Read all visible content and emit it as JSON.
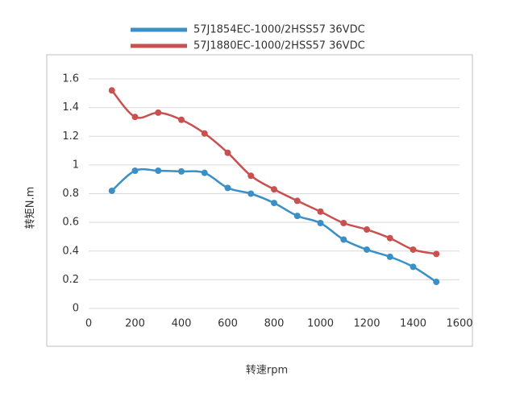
{
  "chart_data": {
    "type": "line",
    "x": [
      100,
      200,
      300,
      400,
      500,
      600,
      700,
      800,
      900,
      1000,
      1100,
      1200,
      1300,
      1400,
      1500
    ],
    "series": [
      {
        "name": "57J1854EC-1000/2HSS57  36VDC",
        "color": "#3a8fc7",
        "values": [
          0.82,
          0.96,
          0.96,
          0.955,
          0.945,
          0.84,
          0.8,
          0.735,
          0.645,
          0.595,
          0.48,
          0.41,
          0.36,
          0.29,
          0.185
        ]
      },
      {
        "name": "57J1880EC-1000/2HSS57  36VDC",
        "color": "#c9504f",
        "values": [
          1.52,
          1.335,
          1.365,
          1.315,
          1.22,
          1.085,
          0.925,
          0.83,
          0.75,
          0.675,
          0.595,
          0.55,
          0.49,
          0.41,
          0.38
        ]
      }
    ],
    "xlim": [
      0,
      1600
    ],
    "xticks": [
      0,
      200,
      400,
      600,
      800,
      1000,
      1200,
      1400,
      1600
    ],
    "ylim": [
      0,
      1.6
    ],
    "yticks": [
      0,
      0.2,
      0.4,
      0.6,
      0.8,
      1,
      1.2,
      1.4,
      1.6
    ],
    "x_label": "转速rpm",
    "y_label": "转矩N.m",
    "grid": true,
    "legend": "top"
  }
}
